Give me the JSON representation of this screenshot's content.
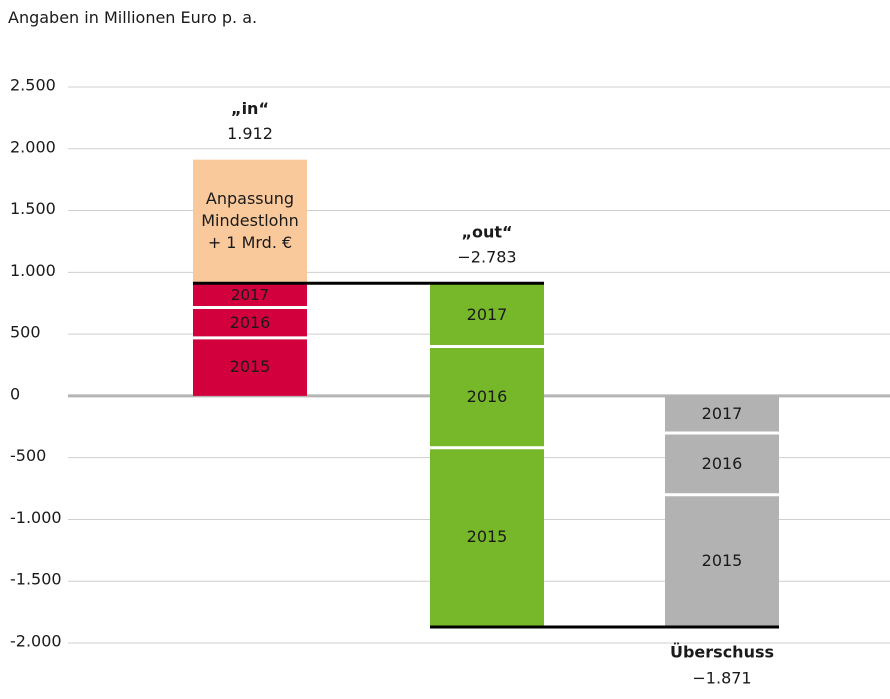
{
  "chart_data": {
    "type": "waterfall",
    "subtitle": "Angaben in Millionen Euro p. a.",
    "ylim": [
      -2000,
      2500
    ],
    "yticks": [
      {
        "value": 2500,
        "label": "2.500"
      },
      {
        "value": 2000,
        "label": "2.000"
      },
      {
        "value": 1500,
        "label": "1.500"
      },
      {
        "value": 1000,
        "label": "1.000"
      },
      500,
      0,
      -500,
      {
        "value": -1000,
        "label": "-1.000"
      },
      {
        "value": -1500,
        "label": "-1.500"
      },
      {
        "value": -2000,
        "label": "-2.000"
      }
    ],
    "grid": true,
    "bars": [
      {
        "label": "„in“",
        "total": 1912,
        "value_label": "1.912",
        "segments": [
          {
            "name": "2015",
            "value": 470,
            "color": "#d2003c"
          },
          {
            "name": "2016",
            "value": 245,
            "color": "#d2003c"
          },
          {
            "name": "2017",
            "value": 197,
            "color": "#d2003c"
          },
          {
            "name": "Anpassung Mindestlohn + 1 Mrd. €",
            "value": 1000,
            "color": "#f9c99b"
          }
        ]
      },
      {
        "label": "„out“",
        "total": -2783,
        "value_label": "−2.783",
        "segments": [
          {
            "name": "2017",
            "value": -512,
            "color": "#76b82a"
          },
          {
            "name": "2016",
            "value": -820,
            "color": "#76b82a"
          },
          {
            "name": "2015",
            "value": -1451,
            "color": "#76b82a"
          }
        ]
      },
      {
        "label": "Überschuss",
        "total": -1871,
        "value_label": "−1.871",
        "segments": [
          {
            "name": "2017",
            "value": -300,
            "color": "#b2b2b2"
          },
          {
            "name": "2016",
            "value": -500,
            "color": "#b2b2b2"
          },
          {
            "name": "2015",
            "value": -1071,
            "color": "#b2b2b2"
          }
        ]
      }
    ]
  }
}
